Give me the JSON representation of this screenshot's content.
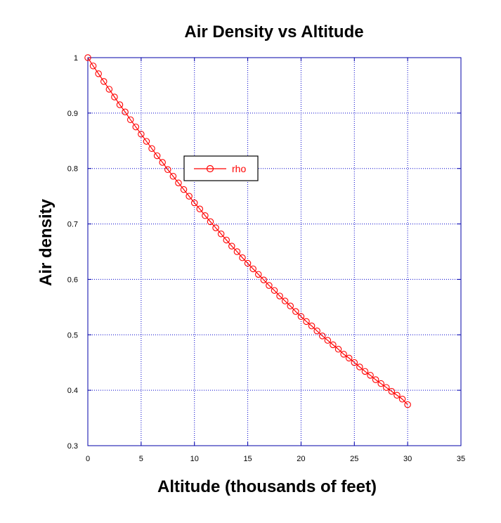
{
  "chart_data": {
    "type": "line",
    "title": "Air Density vs Altitude",
    "xlabel": "Altitude (thousands of feet)",
    "ylabel": "Air density",
    "xlim": [
      0,
      35
    ],
    "ylim": [
      0.3,
      1
    ],
    "xticks": [
      0,
      5,
      10,
      15,
      20,
      25,
      30,
      35
    ],
    "yticks": [
      0.3,
      0.4,
      0.5,
      0.6,
      0.7,
      0.8,
      0.9,
      1
    ],
    "grid": true,
    "legend": {
      "placement": "upper-middle-left",
      "entries": [
        "rho"
      ]
    },
    "colors": {
      "axes": "#0000aa",
      "grid": "#0000cc",
      "series": "#ff0000"
    },
    "series": [
      {
        "name": "rho",
        "marker": "circle",
        "x": [
          0,
          0.5,
          1,
          1.5,
          2,
          2.5,
          3,
          3.5,
          4,
          4.5,
          5,
          5.5,
          6,
          6.5,
          7,
          7.5,
          8,
          8.5,
          9,
          9.5,
          10,
          10.5,
          11,
          11.5,
          12,
          12.5,
          13,
          13.5,
          14,
          14.5,
          15,
          15.5,
          16,
          16.5,
          17,
          17.5,
          18,
          18.5,
          19,
          19.5,
          20,
          20.5,
          21,
          21.5,
          22,
          22.5,
          23,
          23.5,
          24,
          24.5,
          25,
          25.5,
          26,
          26.5,
          27,
          27.5,
          28,
          28.5,
          29,
          29.5,
          30
        ],
        "y": [
          1.0,
          0.985,
          0.971,
          0.957,
          0.943,
          0.929,
          0.915,
          0.902,
          0.888,
          0.875,
          0.862,
          0.849,
          0.836,
          0.823,
          0.811,
          0.798,
          0.786,
          0.774,
          0.762,
          0.75,
          0.738,
          0.727,
          0.715,
          0.704,
          0.693,
          0.682,
          0.671,
          0.66,
          0.65,
          0.639,
          0.629,
          0.619,
          0.609,
          0.599,
          0.589,
          0.58,
          0.57,
          0.561,
          0.552,
          0.542,
          0.533,
          0.524,
          0.516,
          0.507,
          0.498,
          0.49,
          0.482,
          0.474,
          0.465,
          0.458,
          0.45,
          0.442,
          0.434,
          0.427,
          0.419,
          0.412,
          0.405,
          0.398,
          0.391,
          0.384,
          0.374
        ]
      }
    ]
  }
}
